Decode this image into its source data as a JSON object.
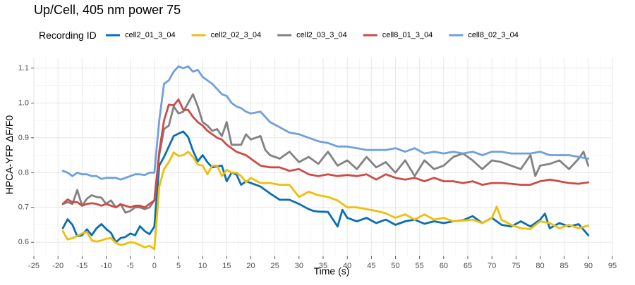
{
  "chart_data": {
    "type": "line",
    "title": "Up/Cell, 405 nm power 75",
    "xlabel": "Time (s)",
    "ylabel": "HPCA-YFP ΔF/F0",
    "xlim": [
      -25,
      95
    ],
    "ylim": [
      0.56,
      1.13
    ],
    "x_ticks": [
      -25,
      -20,
      -15,
      -10,
      -5,
      0,
      5,
      10,
      15,
      20,
      25,
      30,
      35,
      40,
      45,
      50,
      55,
      60,
      65,
      70,
      75,
      80,
      85,
      90,
      95
    ],
    "y_ticks": [
      0.6,
      0.7,
      0.8,
      0.9,
      1.0,
      1.1
    ],
    "x_tick_labels": [
      "-25",
      "-20",
      "-15",
      "-10",
      "-5",
      "0",
      "5",
      "10",
      "15",
      "20",
      "25",
      "30",
      "35",
      "40",
      "45",
      "50",
      "55",
      "60",
      "65",
      "70",
      "75",
      "80",
      "85",
      "90",
      "95"
    ],
    "y_tick_labels": [
      "0.6",
      "0.7",
      "0.8",
      "0.9",
      "1.0",
      "1.1"
    ],
    "grid": true,
    "legend": {
      "title": "Recording ID",
      "placement": "top"
    },
    "series": [
      {
        "name": "cell2_01_3_04",
        "color": "#0a6eb4",
        "x": [
          -19,
          -18,
          -17,
          -16,
          -15,
          -14,
          -13,
          -12,
          -11,
          -10,
          -9,
          -8,
          -7,
          -6,
          -5,
          -4,
          -3,
          -2,
          -1,
          0,
          1,
          2,
          3,
          4,
          5,
          6,
          7,
          8,
          9,
          10,
          11,
          12,
          13,
          14,
          15,
          16,
          17,
          18,
          19,
          20,
          22,
          24,
          26,
          28,
          30,
          32,
          33,
          34,
          36,
          38,
          39,
          40,
          42,
          44,
          46,
          48,
          50,
          52,
          54,
          56,
          58,
          60,
          62,
          64,
          66,
          68,
          70,
          72,
          74,
          76,
          78,
          80,
          81,
          82,
          84,
          86,
          88,
          90
        ],
        "y": [
          0.64,
          0.666,
          0.65,
          0.617,
          0.62,
          0.637,
          0.62,
          0.64,
          0.652,
          0.638,
          0.627,
          0.6,
          0.612,
          0.615,
          0.625,
          0.62,
          0.646,
          0.632,
          0.623,
          0.645,
          0.82,
          0.845,
          0.875,
          0.905,
          0.912,
          0.918,
          0.902,
          0.863,
          0.832,
          0.85,
          0.83,
          0.815,
          0.818,
          0.82,
          0.775,
          0.8,
          0.795,
          0.765,
          0.775,
          0.77,
          0.76,
          0.74,
          0.722,
          0.722,
          0.71,
          0.695,
          0.69,
          0.688,
          0.687,
          0.645,
          0.693,
          0.67,
          0.66,
          0.67,
          0.655,
          0.665,
          0.65,
          0.66,
          0.665,
          0.653,
          0.66,
          0.655,
          0.66,
          0.663,
          0.675,
          0.655,
          0.67,
          0.65,
          0.645,
          0.66,
          0.645,
          0.665,
          0.682,
          0.64,
          0.655,
          0.645,
          0.652,
          0.62
        ]
      },
      {
        "name": "cell2_02_3_04",
        "color": "#f0be0a",
        "x": [
          -19,
          -18,
          -17,
          -16,
          -15,
          -14,
          -13,
          -12,
          -11,
          -10,
          -9,
          -8,
          -7,
          -6,
          -5,
          -4,
          -3,
          -2,
          -1,
          0,
          1,
          2,
          3,
          4,
          5,
          6,
          7,
          8,
          9,
          10,
          11,
          12,
          13,
          14,
          15,
          16,
          17,
          18,
          19,
          20,
          22,
          24,
          26,
          28,
          30,
          32,
          34,
          36,
          38,
          40,
          42,
          44,
          46,
          48,
          50,
          52,
          54,
          56,
          58,
          60,
          62,
          64,
          66,
          68,
          70,
          71,
          72,
          74,
          76,
          78,
          80,
          82,
          84,
          86,
          88,
          90
        ],
        "y": [
          0.632,
          0.608,
          0.612,
          0.618,
          0.625,
          0.63,
          0.605,
          0.602,
          0.605,
          0.61,
          0.612,
          0.598,
          0.592,
          0.595,
          0.6,
          0.598,
          0.592,
          0.585,
          0.59,
          0.58,
          0.76,
          0.81,
          0.83,
          0.858,
          0.848,
          0.85,
          0.86,
          0.845,
          0.823,
          0.82,
          0.795,
          0.82,
          0.82,
          0.79,
          0.808,
          0.8,
          0.8,
          0.79,
          0.772,
          0.785,
          0.77,
          0.77,
          0.765,
          0.765,
          0.73,
          0.745,
          0.735,
          0.73,
          0.72,
          0.7,
          0.7,
          0.695,
          0.69,
          0.683,
          0.67,
          0.68,
          0.665,
          0.68,
          0.665,
          0.67,
          0.66,
          0.662,
          0.665,
          0.655,
          0.67,
          0.702,
          0.665,
          0.65,
          0.64,
          0.638,
          0.66,
          0.655,
          0.64,
          0.65,
          0.64,
          0.648
        ]
      },
      {
        "name": "cell2_03_3_04",
        "color": "#828282",
        "x": [
          -19,
          -18,
          -17,
          -16,
          -15,
          -14,
          -13,
          -12,
          -11,
          -10,
          -9,
          -8,
          -7,
          -6,
          -5,
          -4,
          -3,
          -2,
          -1,
          0,
          1,
          2,
          3,
          4,
          5,
          6,
          7,
          8,
          9,
          10,
          11,
          12,
          13,
          14,
          15,
          16,
          17,
          18,
          19,
          20,
          21,
          22,
          23,
          24,
          26,
          28,
          30,
          32,
          34,
          36,
          38,
          40,
          42,
          44,
          46,
          48,
          50,
          52,
          54,
          56,
          58,
          60,
          62,
          64,
          66,
          68,
          70,
          72,
          74,
          76,
          78,
          79,
          80,
          82,
          84,
          86,
          88,
          89,
          90
        ],
        "y": [
          0.71,
          0.715,
          0.71,
          0.75,
          0.705,
          0.725,
          0.735,
          0.73,
          0.728,
          0.71,
          0.72,
          0.7,
          0.71,
          0.685,
          0.69,
          0.7,
          0.7,
          0.695,
          0.7,
          0.72,
          0.85,
          0.925,
          0.935,
          0.99,
          0.97,
          0.975,
          1.0,
          1.025,
          0.99,
          0.945,
          0.935,
          0.92,
          0.925,
          0.905,
          0.945,
          0.88,
          0.88,
          0.88,
          0.91,
          0.895,
          0.9,
          0.905,
          0.865,
          0.85,
          0.84,
          0.86,
          0.83,
          0.845,
          0.825,
          0.86,
          0.82,
          0.835,
          0.81,
          0.845,
          0.815,
          0.83,
          0.8,
          0.835,
          0.79,
          0.835,
          0.81,
          0.82,
          0.845,
          0.855,
          0.835,
          0.81,
          0.835,
          0.83,
          0.82,
          0.81,
          0.85,
          0.79,
          0.82,
          0.825,
          0.835,
          0.81,
          0.84,
          0.86,
          0.82
        ]
      },
      {
        "name": "cell8_01_3_04",
        "color": "#cd4b46",
        "x": [
          -19,
          -18,
          -17,
          -16,
          -15,
          -14,
          -13,
          -12,
          -11,
          -10,
          -9,
          -8,
          -7,
          -6,
          -5,
          -4,
          -3,
          -2,
          -1,
          0,
          1,
          2,
          3,
          4,
          5,
          6,
          7,
          8,
          9,
          10,
          11,
          12,
          13,
          14,
          15,
          16,
          17,
          18,
          19,
          20,
          22,
          24,
          26,
          28,
          30,
          32,
          34,
          36,
          38,
          40,
          42,
          44,
          46,
          48,
          50,
          52,
          54,
          56,
          58,
          60,
          62,
          64,
          66,
          68,
          70,
          72,
          74,
          76,
          78,
          80,
          82,
          84,
          86,
          88,
          90
        ],
        "y": [
          0.71,
          0.723,
          0.715,
          0.715,
          0.705,
          0.71,
          0.712,
          0.71,
          0.705,
          0.71,
          0.705,
          0.7,
          0.708,
          0.705,
          0.7,
          0.705,
          0.705,
          0.7,
          0.71,
          0.72,
          0.86,
          0.95,
          0.995,
          0.993,
          1.01,
          0.98,
          0.98,
          0.96,
          0.945,
          0.935,
          0.92,
          0.91,
          0.9,
          0.895,
          0.88,
          0.87,
          0.86,
          0.855,
          0.85,
          0.84,
          0.82,
          0.815,
          0.815,
          0.805,
          0.81,
          0.795,
          0.79,
          0.795,
          0.79,
          0.793,
          0.79,
          0.795,
          0.78,
          0.795,
          0.785,
          0.78,
          0.785,
          0.775,
          0.785,
          0.775,
          0.775,
          0.77,
          0.775,
          0.765,
          0.77,
          0.77,
          0.768,
          0.765,
          0.765,
          0.775,
          0.78,
          0.775,
          0.77,
          0.768,
          0.772
        ]
      },
      {
        "name": "cell8_02_3_04",
        "color": "#6fa0dc",
        "x": [
          -19,
          -18,
          -17,
          -16,
          -15,
          -14,
          -13,
          -12,
          -11,
          -10,
          -9,
          -8,
          -7,
          -6,
          -5,
          -4,
          -3,
          -2,
          -1,
          0,
          1,
          2,
          3,
          4,
          5,
          6,
          7,
          8,
          9,
          10,
          11,
          12,
          13,
          14,
          15,
          16,
          17,
          18,
          19,
          20,
          22,
          24,
          26,
          28,
          30,
          32,
          34,
          36,
          38,
          40,
          42,
          44,
          46,
          48,
          50,
          52,
          54,
          56,
          58,
          60,
          62,
          64,
          66,
          68,
          70,
          72,
          74,
          76,
          78,
          80,
          82,
          84,
          86,
          88,
          90
        ],
        "y": [
          0.805,
          0.8,
          0.79,
          0.8,
          0.795,
          0.795,
          0.79,
          0.79,
          0.782,
          0.785,
          0.785,
          0.785,
          0.78,
          0.785,
          0.79,
          0.795,
          0.795,
          0.793,
          0.8,
          0.8,
          0.95,
          1.055,
          1.065,
          1.09,
          1.105,
          1.1,
          1.105,
          1.09,
          1.095,
          1.075,
          1.065,
          1.055,
          1.04,
          1.025,
          1.02,
          1.0,
          0.99,
          0.985,
          0.975,
          0.97,
          0.975,
          0.945,
          0.93,
          0.915,
          0.91,
          0.9,
          0.89,
          0.885,
          0.875,
          0.875,
          0.87,
          0.865,
          0.865,
          0.865,
          0.87,
          0.86,
          0.87,
          0.855,
          0.86,
          0.855,
          0.86,
          0.855,
          0.86,
          0.85,
          0.86,
          0.86,
          0.855,
          0.855,
          0.855,
          0.86,
          0.85,
          0.85,
          0.85,
          0.845,
          0.84
        ]
      }
    ]
  }
}
